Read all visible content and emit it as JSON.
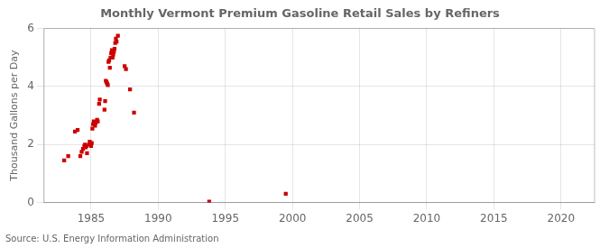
{
  "chart_data": {
    "type": "scatter",
    "title": "Monthly Vermont Premium Gasoline Retail Sales by Refiners",
    "ylabel": "Thousand Gallons per Day",
    "annotation": "Source: U.S. Energy Information Administration",
    "color": "#cc0000",
    "marker": "square",
    "grid": true,
    "x": [
      1983.0,
      1983.3,
      1983.8,
      1984.0,
      1984.2,
      1984.3,
      1984.4,
      1984.5,
      1984.55,
      1984.6,
      1984.65,
      1984.7,
      1984.85,
      1984.9,
      1985.0,
      1985.05,
      1985.1,
      1985.15,
      1985.2,
      1985.25,
      1985.3,
      1985.35,
      1985.45,
      1985.5,
      1985.6,
      1985.65,
      1986.0,
      1986.05,
      1986.1,
      1986.15,
      1986.2,
      1986.25,
      1986.3,
      1986.35,
      1986.4,
      1986.45,
      1986.5,
      1986.55,
      1986.6,
      1986.65,
      1986.7,
      1986.75,
      1986.8,
      1986.85,
      1986.9,
      1987.0,
      1987.5,
      1987.6,
      1987.9,
      1988.2,
      1993.8,
      1999.5
    ],
    "values": [
      1.45,
      1.6,
      2.45,
      2.5,
      1.6,
      1.75,
      1.85,
      1.95,
      2.0,
      1.9,
      1.95,
      1.7,
      2.0,
      2.1,
      1.95,
      2.05,
      2.55,
      2.7,
      2.8,
      2.75,
      2.65,
      2.75,
      2.85,
      2.8,
      3.4,
      3.55,
      3.2,
      3.5,
      4.2,
      4.15,
      4.1,
      4.05,
      4.85,
      4.9,
      4.65,
      5.0,
      5.15,
      5.25,
      5.0,
      5.1,
      5.2,
      5.3,
      5.5,
      5.65,
      5.55,
      5.75,
      4.7,
      4.6,
      3.9,
      3.1,
      0.03,
      0.3
    ],
    "xlim": [
      1981.5,
      2022.5
    ],
    "xticks": [
      1985,
      1990,
      1995,
      2000,
      2005,
      2010,
      2015,
      2020
    ],
    "ylim": [
      0,
      6
    ],
    "yticks": [
      0,
      2,
      4,
      6
    ]
  }
}
